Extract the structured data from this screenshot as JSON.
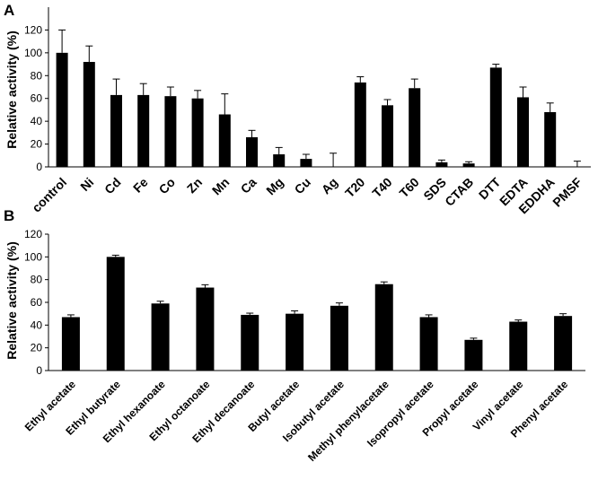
{
  "panels": {
    "a_label": "A",
    "b_label": "B"
  },
  "chart_data": [
    {
      "type": "bar",
      "panel": "A",
      "title": "",
      "xlabel": "",
      "ylabel": "Relative activity (%)",
      "ylim": [
        0,
        140
      ],
      "yticks": [
        0,
        20,
        40,
        60,
        80,
        100,
        120
      ],
      "grid": false,
      "categories": [
        "control",
        "Ni",
        "Cd",
        "Fe",
        "Co",
        "Zn",
        "Mn",
        "Ca",
        "Mg",
        "Cu",
        "Ag",
        "T20",
        "T40",
        "T60",
        "SDS",
        "CTAB",
        "DTT",
        "EDTA",
        "EDDHA",
        "PMSF"
      ],
      "values": [
        100,
        92,
        63,
        63,
        62,
        60,
        46,
        26,
        11,
        7,
        0,
        74,
        54,
        69,
        4,
        3,
        87,
        61,
        48,
        0
      ],
      "errors": [
        20,
        14,
        14,
        10,
        8,
        7,
        18,
        6,
        6,
        4,
        12,
        5,
        5,
        8,
        2,
        1.5,
        3,
        9,
        8,
        5
      ]
    },
    {
      "type": "bar",
      "panel": "B",
      "title": "",
      "xlabel": "",
      "ylabel": "Relative  activity (%)",
      "ylim": [
        0,
        120
      ],
      "yticks": [
        0,
        20,
        40,
        60,
        80,
        100,
        120
      ],
      "grid": false,
      "categories": [
        "Ethyl acetate",
        "Ethyl butyrate",
        "Ethyl hexanoate",
        "Ethyl octanoate",
        "Ethyl decanoate",
        "Butyl acetate",
        "Isobutyl acetate",
        "Methyl phenylacetate",
        "Isopropyl acetate",
        "Propyl acetate",
        "Vinyl acetate",
        "Phenyl acetate"
      ],
      "values": [
        47,
        100,
        59,
        73,
        49,
        50,
        57,
        76,
        47,
        27,
        43,
        48
      ],
      "errors": [
        2,
        1.5,
        2,
        2.5,
        1.5,
        2.5,
        2.5,
        2,
        2,
        1.5,
        1.5,
        2
      ]
    }
  ]
}
